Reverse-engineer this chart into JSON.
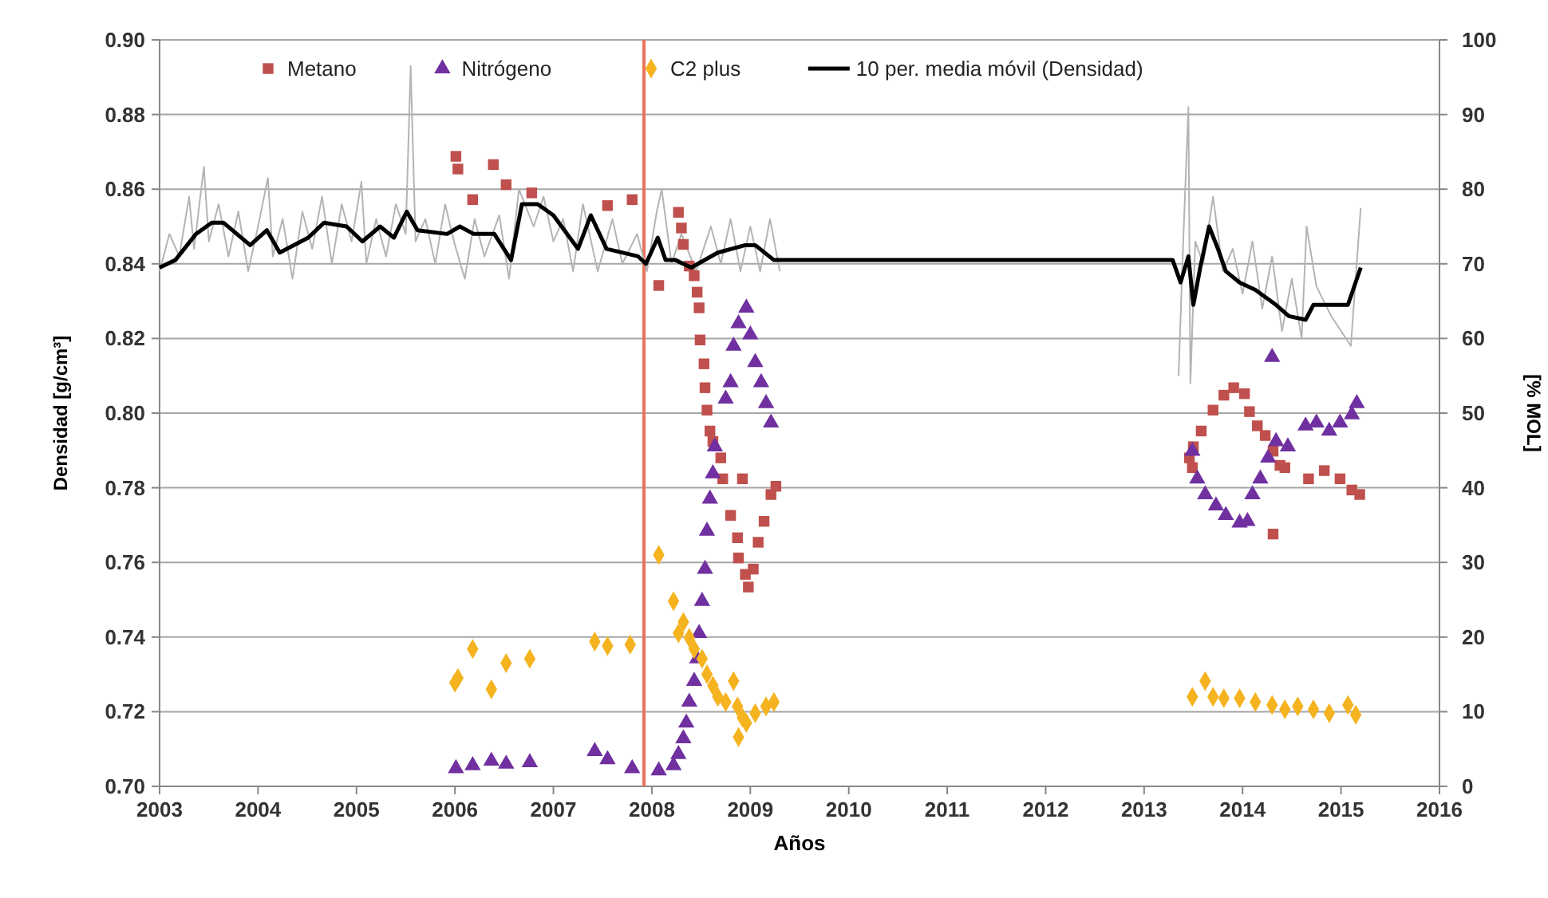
{
  "chart_data": {
    "type": "scatter",
    "xlabel": "Años",
    "ylabel": "Densidad [g/cm³]",
    "y2label": "[% MOL]",
    "xlim": [
      2003,
      2016
    ],
    "xticks": [
      2003,
      2004,
      2005,
      2006,
      2007,
      2008,
      2009,
      2010,
      2011,
      2012,
      2013,
      2014,
      2015,
      2016
    ],
    "ylim": [
      0.7,
      0.9
    ],
    "yticks": [
      {
        "value": 0.7,
        "label": "0.70"
      },
      {
        "value": 0.72,
        "label": "0.72"
      },
      {
        "value": 0.74,
        "label": "0.74"
      },
      {
        "value": 0.76,
        "label": "0.76"
      },
      {
        "value": 0.78,
        "label": "0.78"
      },
      {
        "value": 0.8,
        "label": "0.80"
      },
      {
        "value": 0.82,
        "label": "0.82"
      },
      {
        "value": 0.84,
        "label": "0.84"
      },
      {
        "value": 0.86,
        "label": "0.86"
      },
      {
        "value": 0.88,
        "label": "0.88"
      },
      {
        "value": 0.9,
        "label": "0.90"
      }
    ],
    "y2lim": [
      0,
      100
    ],
    "y2ticks": [
      0,
      10,
      20,
      30,
      40,
      50,
      60,
      70,
      80,
      90,
      100
    ],
    "grid": "y",
    "legend": "top",
    "ref_lines": [
      {
        "axis": "x",
        "value": 2007.92,
        "color": "#e8735a"
      }
    ],
    "series": [
      {
        "type": "line",
        "color": "#b4b4b4",
        "x": [
          2003.0,
          2003.1,
          2003.2,
          2003.3,
          2003.35,
          2003.45,
          2003.5,
          2003.6,
          2003.7,
          2003.8,
          2003.9,
          2004.0,
          2004.1,
          2004.15,
          2004.25,
          2004.35,
          2004.45,
          2004.55,
          2004.65,
          2004.75,
          2004.85,
          2004.95,
          2005.05,
          2005.1,
          2005.2,
          2005.3,
          2005.4,
          2005.5,
          2005.55,
          2005.6,
          2005.7,
          2005.8,
          2005.9,
          2006.0,
          2006.1,
          2006.2,
          2006.3,
          2006.45,
          2006.55,
          2006.65,
          2006.8,
          2006.9,
          2007.0,
          2007.1,
          2007.2,
          2007.3,
          2007.45,
          2007.6,
          2007.7,
          2007.85,
          2007.95,
          2008.05,
          2008.1,
          2008.2,
          2008.3,
          2008.45,
          2008.6,
          2008.7,
          2008.8,
          2008.9,
          2009.0,
          2009.1,
          2009.2,
          2009.3,
          2011.0,
          2013.35,
          2013.4,
          2013.45,
          2013.47,
          2013.52,
          2013.6,
          2013.7,
          2013.8,
          2013.9,
          2014.0,
          2014.1,
          2014.2,
          2014.3,
          2014.4,
          2014.5,
          2014.6,
          2014.65,
          2014.75,
          2014.9,
          2015.0,
          2015.1,
          2015.2
        ],
        "values": [
          0.838,
          0.848,
          0.842,
          0.858,
          0.844,
          0.866,
          0.846,
          0.856,
          0.842,
          0.854,
          0.838,
          0.85,
          0.863,
          0.842,
          0.852,
          0.836,
          0.854,
          0.844,
          0.858,
          0.84,
          0.856,
          0.846,
          0.862,
          0.84,
          0.852,
          0.842,
          0.856,
          0.848,
          0.893,
          0.846,
          0.852,
          0.84,
          0.856,
          0.845,
          0.836,
          0.852,
          0.842,
          0.853,
          0.836,
          0.86,
          0.85,
          0.858,
          0.846,
          0.852,
          0.838,
          0.856,
          0.838,
          0.852,
          0.84,
          0.848,
          0.838,
          0.854,
          0.86,
          0.84,
          0.848,
          0.838,
          0.85,
          0.84,
          0.852,
          0.838,
          0.85,
          0.838,
          0.852,
          0.838,
          null,
          0.81,
          0.848,
          0.882,
          0.808,
          0.846,
          0.84,
          0.858,
          0.838,
          0.844,
          0.832,
          0.846,
          0.828,
          0.842,
          0.822,
          0.836,
          0.82,
          0.85,
          0.834,
          0.826,
          0.822,
          0.818,
          0.855
        ]
      },
      {
        "name": "Metano",
        "axis": "y2",
        "color": "#c0504d",
        "marker": "square",
        "x": [
          2006.01,
          2006.03,
          2006.18,
          2006.39,
          2006.52,
          2006.78,
          2007.55,
          2007.8,
          2008.07,
          2008.27,
          2008.3,
          2008.32,
          2008.38,
          2008.43,
          2008.46,
          2008.48,
          2008.49,
          2008.53,
          2008.54,
          2008.56,
          2008.59,
          2008.62,
          2008.7,
          2008.72,
          2008.8,
          2008.87,
          2008.88,
          2008.92,
          2008.95,
          2008.98,
          2009.03,
          2009.08,
          2009.14,
          2009.21,
          2009.26,
          2013.46,
          2013.49,
          2013.5,
          2013.58,
          2013.7,
          2013.81,
          2013.91,
          2014.02,
          2014.07,
          2014.15,
          2014.23,
          2014.31,
          2014.38,
          2014.43,
          2014.31,
          2014.67,
          2014.83,
          2014.99,
          2015.11,
          2015.19
        ],
        "values": [
          84.4,
          82.7,
          78.6,
          83.3,
          80.6,
          79.5,
          77.8,
          78.6,
          67.1,
          76.9,
          74.8,
          72.6,
          69.7,
          68.4,
          66.2,
          64.1,
          59.8,
          56.6,
          53.4,
          50.4,
          47.6,
          46.2,
          44.0,
          41.2,
          36.3,
          33.3,
          30.6,
          41.2,
          28.4,
          26.7,
          29.1,
          32.7,
          35.5,
          39.1,
          40.2,
          44.0,
          42.7,
          45.5,
          47.6,
          50.4,
          52.4,
          53.4,
          52.6,
          50.2,
          48.3,
          47.0,
          44.9,
          43.0,
          42.7,
          33.8,
          41.2,
          42.3,
          41.2,
          39.7,
          39.1
        ]
      },
      {
        "name": "Nitrógeno",
        "axis": "y2",
        "color": "#7030a0",
        "marker": "triangle",
        "x": [
          2006.01,
          2006.18,
          2006.37,
          2006.52,
          2006.76,
          2007.42,
          2007.55,
          2007.8,
          2008.07,
          2008.22,
          2008.27,
          2008.32,
          2008.35,
          2008.38,
          2008.43,
          2008.46,
          2008.48,
          2008.51,
          2008.54,
          2008.56,
          2008.59,
          2008.62,
          2008.64,
          2008.75,
          2008.8,
          2008.83,
          2008.88,
          2008.96,
          2009.0,
          2009.05,
          2009.11,
          2009.16,
          2009.21,
          2013.49,
          2013.54,
          2013.62,
          2013.73,
          2013.83,
          2013.97,
          2014.05,
          2014.1,
          2014.18,
          2014.26,
          2014.34,
          2014.3,
          2014.46,
          2014.64,
          2014.75,
          2014.88,
          2014.99,
          2015.11,
          2015.16
        ],
        "values": [
          2.4,
          2.8,
          3.4,
          3.0,
          3.2,
          4.7,
          3.6,
          2.4,
          2.1,
          2.8,
          4.3,
          6.4,
          8.5,
          11.3,
          14.1,
          17.1,
          20.5,
          24.8,
          29.1,
          34.2,
          38.5,
          41.9,
          45.5,
          51.9,
          54.1,
          59.0,
          62.0,
          64.1,
          60.5,
          56.8,
          54.1,
          51.3,
          48.7,
          44.9,
          41.2,
          39.1,
          37.6,
          36.3,
          35.3,
          35.5,
          39.1,
          41.2,
          44.0,
          46.2,
          57.5,
          45.5,
          48.3,
          48.7,
          47.6,
          48.7,
          49.8,
          51.3
        ]
      },
      {
        "name": "C2 plus",
        "axis": "y2",
        "color": "#f5b320",
        "marker": "diamond",
        "x": [
          2006.0,
          2006.03,
          2006.18,
          2006.37,
          2006.52,
          2006.76,
          2007.42,
          2007.55,
          2007.78,
          2008.07,
          2008.22,
          2008.27,
          2008.32,
          2008.38,
          2008.43,
          2008.51,
          2008.56,
          2008.62,
          2008.67,
          2008.75,
          2008.83,
          2008.87,
          2008.92,
          2008.88,
          2008.96,
          2009.05,
          2009.16,
          2009.24,
          2013.49,
          2013.62,
          2013.7,
          2013.81,
          2013.97,
          2014.13,
          2014.3,
          2014.43,
          2014.56,
          2014.72,
          2014.88,
          2015.07,
          2015.15
        ],
        "values": [
          13.9,
          14.5,
          18.4,
          13.0,
          16.5,
          17.1,
          19.4,
          18.8,
          19.0,
          31.0,
          24.8,
          20.5,
          22.0,
          19.9,
          18.4,
          17.1,
          15.0,
          13.5,
          12.0,
          11.3,
          14.1,
          10.7,
          9.2,
          6.6,
          8.5,
          9.8,
          10.7,
          11.3,
          12.0,
          14.1,
          12.0,
          11.8,
          11.8,
          11.3,
          10.9,
          10.3,
          10.7,
          10.3,
          9.8,
          10.9,
          9.6
        ]
      },
      {
        "name": "10 per. media móvil (Densidad)",
        "type": "line",
        "color": "#000000",
        "x": [
          2003.0,
          2003.16,
          2003.37,
          2003.53,
          2003.65,
          2003.92,
          2004.09,
          2004.22,
          2004.51,
          2004.67,
          2004.9,
          2005.06,
          2005.24,
          2005.38,
          2005.51,
          2005.62,
          2005.92,
          2006.05,
          2006.19,
          2006.4,
          2006.57,
          2006.68,
          2006.84,
          2007.0,
          2007.25,
          2007.38,
          2007.54,
          2007.86,
          2007.94,
          2008.06,
          2008.14,
          2008.24,
          2008.4,
          2008.67,
          2008.95,
          2009.05,
          2009.24,
          2013.29,
          2013.37,
          2013.45,
          2013.5,
          2013.57,
          2013.66,
          2013.75,
          2013.83,
          2013.97,
          2014.13,
          2014.34,
          2014.47,
          2014.64,
          2014.72,
          2014.88,
          2015.07,
          2015.2
        ],
        "values": [
          0.839,
          0.841,
          0.848,
          0.851,
          0.851,
          0.845,
          0.849,
          0.843,
          0.847,
          0.851,
          0.85,
          0.846,
          0.85,
          0.847,
          0.854,
          0.849,
          0.848,
          0.85,
          0.848,
          0.848,
          0.841,
          0.856,
          0.856,
          0.853,
          0.844,
          0.853,
          0.844,
          0.842,
          0.84,
          0.847,
          0.841,
          0.841,
          0.839,
          0.843,
          0.845,
          0.845,
          0.841,
          0.841,
          0.835,
          0.842,
          0.829,
          0.839,
          0.85,
          0.844,
          0.838,
          0.835,
          0.833,
          0.829,
          0.826,
          0.825,
          0.829,
          0.829,
          0.829,
          0.839
        ]
      }
    ]
  }
}
